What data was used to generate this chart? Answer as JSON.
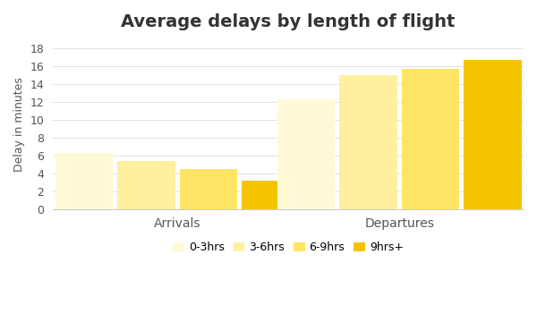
{
  "title": "Average delays by length of flight",
  "ylabel": "Delay in minutes",
  "groups": [
    "Arrivals",
    "Departures"
  ],
  "categories": [
    "0-3hrs",
    "3-6hrs",
    "6-9hrs",
    "9hrs+"
  ],
  "values": {
    "Arrivals": [
      6.3,
      5.4,
      4.5,
      3.2
    ],
    "Departures": [
      12.3,
      15.0,
      15.7,
      16.7
    ]
  },
  "bar_colors": [
    "#FFF9D6",
    "#FFF0A0",
    "#FFE566",
    "#F5C400"
  ],
  "ylim": [
    0,
    19
  ],
  "yticks": [
    0,
    2,
    4,
    6,
    8,
    10,
    12,
    14,
    16,
    18
  ],
  "background_color": "#ffffff",
  "title_fontsize": 14,
  "bar_width": 0.13,
  "group_centers": [
    0.28,
    0.78
  ]
}
